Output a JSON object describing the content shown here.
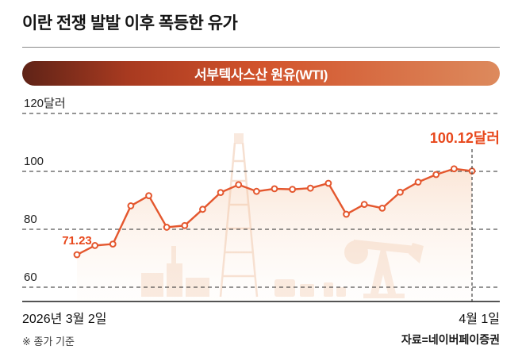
{
  "page": {
    "title": "이란 전쟁 발발 이후 폭등한 유가",
    "footnote": "※ 종가 기준",
    "source": "자료=네이버페이증권"
  },
  "banner": {
    "label": "서부텍사스산 원유(WTI)",
    "gradient": [
      "#5f2317",
      "#a83a20",
      "#d2532c",
      "#dd8a5d"
    ]
  },
  "chart_data": {
    "type": "line",
    "title": "서부텍사스산 원유(WTI)",
    "unit": "달러",
    "x_start_label": "2026년 3월 2일",
    "x_end_label": "4월 1일",
    "yticks": [
      60,
      80,
      100,
      120
    ],
    "ytick_labels": [
      "60",
      "80",
      "100",
      "120달러"
    ],
    "ylim": [
      60,
      125
    ],
    "grid": "dashed-horizontal",
    "legend": "none",
    "line_color": "#e4572e",
    "annotation_color": "#e8481c",
    "first_point_label": "71.23",
    "last_point_label": "100.12달러",
    "values": [
      71.23,
      74.4,
      74.9,
      88.1,
      91.6,
      80.7,
      81.3,
      86.9,
      92.7,
      95.4,
      93.1,
      94.0,
      93.8,
      94.2,
      95.9,
      85.2,
      88.6,
      87.3,
      92.8,
      96.3,
      98.9,
      100.9,
      100.12
    ]
  }
}
